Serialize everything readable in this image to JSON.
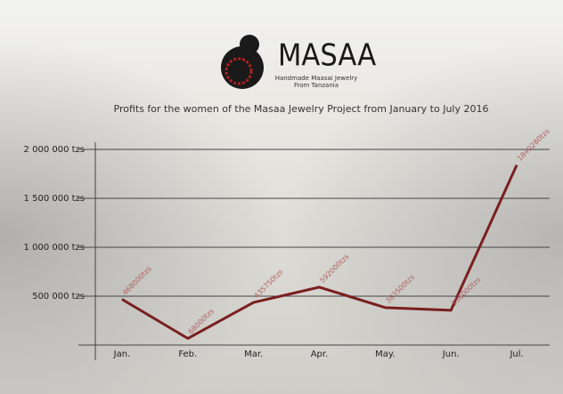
{
  "logo": {
    "name": "MASAA",
    "tagline": "Handmade Maasai Jewelry",
    "origin": "From Tanzania"
  },
  "chart_data": {
    "type": "line",
    "title": "Profits for the women of the Masaa Jewelry Project from January to July 2016",
    "categories": [
      "Jan.",
      "Feb.",
      "Mar.",
      "Apr.",
      "May.",
      "Jun.",
      "Jul."
    ],
    "values": [
      468000,
      68000,
      435750,
      592000,
      383500,
      356000,
      1840280
    ],
    "value_labels": [
      "468000tzs",
      "68000tzs",
      "435750tzs",
      "592000tzs",
      "383500tzs",
      "356000tzs",
      "1840280tzs"
    ],
    "color": "#7a1f1f",
    "ylim": [
      0,
      2000000
    ],
    "yticks": [
      {
        "value": 500000,
        "label": "500 000 tzs"
      },
      {
        "value": 1000000,
        "label": "1 000 000 tzs"
      },
      {
        "value": 1500000,
        "label": "1 500 000 tzs"
      },
      {
        "value": 2000000,
        "label": "2 000 000 tzs"
      }
    ],
    "grid": true
  }
}
